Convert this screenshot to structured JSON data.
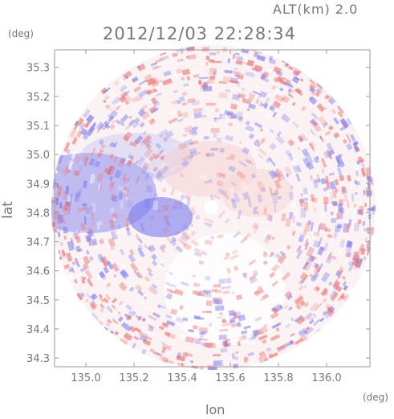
{
  "header": {
    "altitude": "ALT(km) 2.0",
    "timestamp": "2012/12/03 22:28:34"
  },
  "axes": {
    "y_unit": "(deg)",
    "x_unit": "(deg)",
    "y_title": "lat",
    "x_title": "lon",
    "y_ticks": [
      "35.3",
      "35.2",
      "35.1",
      "35.0",
      "34.9",
      "34.8",
      "34.7",
      "34.6",
      "34.5",
      "34.4",
      "34.3"
    ],
    "x_ticks": [
      "135.0",
      "135.2",
      "135.4",
      "135.6",
      "135.8",
      "136.0"
    ]
  },
  "chart_data": {
    "type": "heatmap",
    "xlim": [
      134.87,
      136.18
    ],
    "ylim": [
      34.27,
      35.36
    ],
    "x_ticks": [
      135.0,
      135.2,
      135.4,
      135.6,
      135.8,
      136.0
    ],
    "y_ticks": [
      35.3,
      35.2,
      35.1,
      35.0,
      34.9,
      34.8,
      34.7,
      34.6,
      34.5,
      34.4,
      34.3
    ],
    "radar_center": {
      "lon": 135.52,
      "lat": 34.82
    },
    "colors": {
      "positive": "#ee6f6f",
      "negative": "#7b7bee",
      "neutral": "#fbf3f3"
    }
  }
}
